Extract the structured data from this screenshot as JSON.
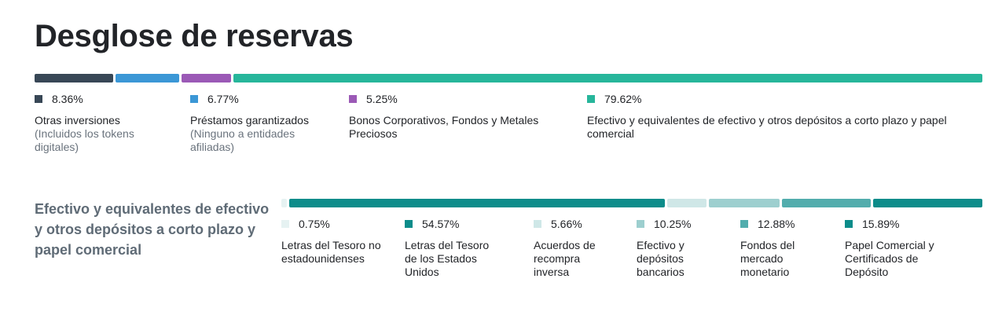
{
  "title": "Desglose de reservas",
  "chart_data": [
    {
      "type": "bar",
      "orientation": "stacked-horizontal",
      "title": "Desglose de reservas",
      "unit": "%",
      "categories": [
        "Otras inversiones",
        "Préstamos garantizados",
        "Bonos Corporativos, Fondos y Metales Preciosos",
        "Efectivo y equivalentes de efectivo y otros depósitos a corto plazo y papel comercial"
      ],
      "values": [
        8.36,
        6.77,
        5.25,
        79.62
      ],
      "value_labels": [
        "8.36%",
        "6.77%",
        "5.25%",
        "79.62%"
      ],
      "sublabels": [
        "(Incluidos los tokens digitales)",
        "(Ninguno a entidades afiliadas)",
        "",
        ""
      ],
      "colors": [
        "#384756",
        "#3b97d6",
        "#9b59b6",
        "#27b69b"
      ]
    },
    {
      "type": "bar",
      "orientation": "stacked-horizontal",
      "title": "Efectivo y equivalentes de efectivo y otros depósitos a corto plazo y papel comercial",
      "unit": "%",
      "categories": [
        "Letras del Tesoro no estadounidenses",
        "Letras del Tesoro de los Estados Unidos",
        "Acuerdos de recompra inversa",
        "Efectivo y depósitos bancarios",
        "Fondos del mercado monetario",
        "Papel Comercial y Certificados de Depósito"
      ],
      "values": [
        0.75,
        54.57,
        5.66,
        10.25,
        12.88,
        15.89
      ],
      "value_labels": [
        "0.75%",
        "54.57%",
        "5.66%",
        "10.25%",
        "12.88%",
        "15.89%"
      ],
      "colors": [
        "#e6f2f2",
        "#0c8c8a",
        "#cfe7e7",
        "#9dcfcf",
        "#52adad",
        "#0c8c8a"
      ]
    }
  ]
}
